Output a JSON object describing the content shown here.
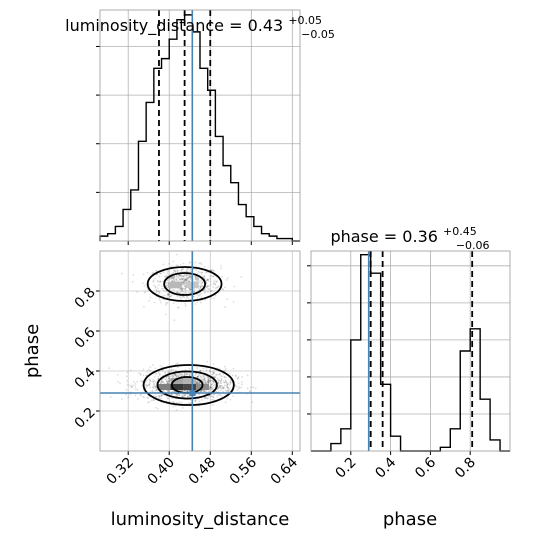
{
  "chart_data": {
    "type": "corner",
    "parameters": [
      "luminosity_distance",
      "phase"
    ],
    "truth": {
      "luminosity_distance": 0.445,
      "phase": 0.29
    },
    "truth_color": "#4682b4",
    "grid": true,
    "histograms": [
      {
        "param": "luminosity_distance",
        "title": {
          "text": "luminosity_distance = 0.43",
          "sup": "+0.05",
          "sub": "−0.05"
        },
        "quantiles": [
          0.38,
          0.43,
          0.48
        ],
        "xlim": [
          0.265,
          0.655
        ],
        "ymax": 0.95,
        "bins": [
          0.265,
          0.28,
          0.295,
          0.31,
          0.325,
          0.34,
          0.355,
          0.37,
          0.385,
          0.4,
          0.415,
          0.43,
          0.445,
          0.46,
          0.475,
          0.49,
          0.505,
          0.52,
          0.535,
          0.55,
          0.565,
          0.58,
          0.595,
          0.61,
          0.625,
          0.64,
          0.655
        ],
        "counts": [
          0.02,
          0.03,
          0.06,
          0.13,
          0.21,
          0.41,
          0.57,
          0.71,
          0.75,
          0.83,
          0.91,
          0.93,
          0.86,
          0.71,
          0.62,
          0.43,
          0.31,
          0.24,
          0.15,
          0.1,
          0.06,
          0.03,
          0.02,
          0.01,
          0.01,
          0.0
        ]
      },
      {
        "param": "phase",
        "title": {
          "text": "phase = 0.36",
          "sup": "+0.45",
          "sub": "−0.06"
        },
        "quantiles": [
          0.3,
          0.36,
          0.81
        ],
        "xlim": [
          0.0,
          1.0
        ],
        "ymax": 0.54,
        "yticks": [
          0.1,
          0.2,
          0.3,
          0.4,
          0.5
        ],
        "bins": [
          0.0,
          0.05,
          0.1,
          0.15,
          0.2,
          0.25,
          0.3,
          0.35,
          0.4,
          0.45,
          0.5,
          0.55,
          0.6,
          0.65,
          0.7,
          0.75,
          0.8,
          0.85,
          0.9,
          0.95,
          1.0
        ],
        "counts": [
          0.0,
          0.0,
          0.02,
          0.06,
          0.3,
          0.53,
          0.48,
          0.18,
          0.04,
          0.0,
          0.0,
          0.0,
          0.0,
          0.01,
          0.06,
          0.27,
          0.33,
          0.14,
          0.03,
          0.0
        ]
      }
    ],
    "scatter": {
      "x_param": "luminosity_distance",
      "y_param": "phase",
      "xlim": [
        0.265,
        0.655
      ],
      "ylim": [
        0.0,
        1.0
      ],
      "clusters": [
        {
          "cx": 0.43,
          "cy": 0.835,
          "sx": 0.035,
          "sy": 0.045,
          "n": 650
        },
        {
          "cx": 0.435,
          "cy": 0.33,
          "sx": 0.045,
          "sy": 0.04,
          "n": 1250
        }
      ],
      "density_cells": [
        {
          "x": 0.41,
          "y": 0.83,
          "shade": 0.28
        },
        {
          "x": 0.445,
          "y": 0.83,
          "shade": 0.22
        },
        {
          "x": 0.39,
          "y": 0.32,
          "shade": 0.5
        },
        {
          "x": 0.415,
          "y": 0.32,
          "shade": 0.78
        },
        {
          "x": 0.44,
          "y": 0.32,
          "shade": 0.72
        },
        {
          "x": 0.465,
          "y": 0.32,
          "shade": 0.45
        },
        {
          "x": 0.415,
          "y": 0.35,
          "shade": 0.35
        },
        {
          "x": 0.44,
          "y": 0.35,
          "shade": 0.3
        }
      ],
      "contours": [
        {
          "cx": 0.43,
          "cy": 0.835,
          "rx": 0.04,
          "ry": 0.055
        },
        {
          "cx": 0.43,
          "cy": 0.835,
          "rx": 0.072,
          "ry": 0.085
        },
        {
          "cx": 0.435,
          "cy": 0.33,
          "rx": 0.03,
          "ry": 0.04
        },
        {
          "cx": 0.435,
          "cy": 0.33,
          "rx": 0.058,
          "ry": 0.068
        },
        {
          "cx": 0.438,
          "cy": 0.33,
          "rx": 0.088,
          "ry": 0.1
        }
      ]
    },
    "axes": {
      "x_ticks": {
        "luminosity_distance": [
          0.32,
          0.4,
          0.48,
          0.56,
          0.64
        ],
        "phase": [
          0.2,
          0.4,
          0.6,
          0.8
        ]
      },
      "x_tick_labels": {
        "luminosity_distance": [
          "0.32",
          "0.40",
          "0.48",
          "0.56",
          "0.64"
        ],
        "phase": [
          "0.2",
          "0.4",
          "0.6",
          "0.8"
        ]
      },
      "y_ticks": {
        "phase": [
          0.2,
          0.4,
          0.6,
          0.8
        ]
      },
      "y_tick_labels": {
        "phase": [
          "0.2",
          "0.4",
          "0.6",
          "0.8"
        ]
      },
      "lumdist_hist_yticks": [
        0.2,
        0.4,
        0.6,
        0.8
      ],
      "xlabel_left": "luminosity_distance",
      "xlabel_right": "phase",
      "ylabel": "phase"
    }
  }
}
